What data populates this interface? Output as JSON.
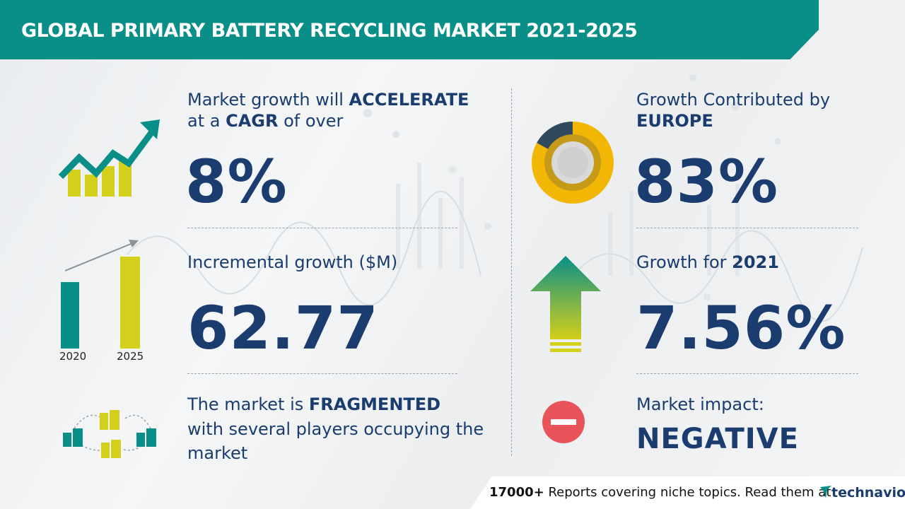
{
  "header": {
    "title": "GLOBAL PRIMARY BATTERY RECYCLING MARKET 2021-2025"
  },
  "cagr": {
    "line1_prefix": "Market growth will",
    "line1_bold": "ACCELERATE",
    "line2_prefix": "at a",
    "line2_bold": "CAGR",
    "line2_suffix": "of over",
    "value": "8%"
  },
  "incremental": {
    "label": "Incremental growth ($M)",
    "value": "62.77",
    "bar_labels": [
      "2020",
      "2025"
    ]
  },
  "fragmented": {
    "line1_prefix": "The market is",
    "line1_bold": "FRAGMENTED",
    "line2": "with several players occupying the",
    "line3": "market"
  },
  "region": {
    "label": "Growth Contributed by",
    "region_name": "EUROPE",
    "value": "83%",
    "share": 0.83
  },
  "yoy": {
    "label_prefix": "Growth for",
    "year": "2021",
    "value": "7.56%"
  },
  "impact": {
    "label": "Market impact:",
    "value": "NEGATIVE"
  },
  "footer": {
    "count": "17000+",
    "text": "Reports covering niche topics. Read them at",
    "brand": "technavio"
  },
  "colors": {
    "teal": "#0a8f88",
    "navy": "#1a3c6e",
    "yellow": "#d4cf1a",
    "gold": "#f2b705",
    "red": "#e8545a",
    "slate": "#2e4a5c"
  }
}
